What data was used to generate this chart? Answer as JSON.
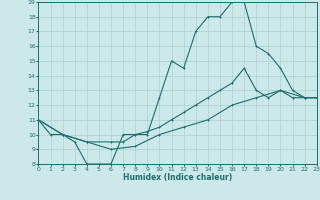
{
  "xlabel": "Humidex (Indice chaleur)",
  "xlim": [
    0,
    23
  ],
  "ylim": [
    8,
    19
  ],
  "xticks": [
    0,
    1,
    2,
    3,
    4,
    5,
    6,
    7,
    8,
    9,
    10,
    11,
    12,
    13,
    14,
    15,
    16,
    17,
    18,
    19,
    20,
    21,
    22,
    23
  ],
  "yticks": [
    8,
    9,
    10,
    11,
    12,
    13,
    14,
    15,
    16,
    17,
    18,
    19
  ],
  "bg_color": "#cce8e8",
  "line_color": "#1a7070",
  "grid_color": "#b0d4d4",
  "line1_x": [
    0,
    1,
    2,
    3,
    4,
    5,
    6,
    7,
    8,
    9,
    10,
    11,
    12,
    13,
    14,
    15,
    16,
    17,
    18,
    19,
    20,
    21,
    22,
    23
  ],
  "line1_y": [
    11,
    10,
    10,
    9.5,
    8,
    8,
    8,
    10,
    10,
    10,
    12.5,
    15,
    14.5,
    17,
    18,
    18,
    19,
    19,
    16,
    15.5,
    14.5,
    13,
    12.5,
    12.5
  ],
  "line2_x": [
    0,
    2,
    4,
    6,
    7,
    8,
    9,
    10,
    11,
    12,
    13,
    14,
    15,
    16,
    17,
    18,
    19,
    20,
    21,
    22,
    23
  ],
  "line2_y": [
    11,
    10,
    9.5,
    9.5,
    9.5,
    10,
    10.2,
    10.5,
    11,
    11.5,
    12,
    12.5,
    13,
    13.5,
    14.5,
    13,
    12.5,
    13,
    12.5,
    12.5,
    12.5
  ],
  "line3_x": [
    0,
    2,
    4,
    6,
    8,
    10,
    12,
    14,
    16,
    18,
    20,
    22,
    23
  ],
  "line3_y": [
    11,
    10,
    9.5,
    9.0,
    9.2,
    10,
    10.5,
    11,
    12,
    12.5,
    13,
    12.5,
    12.5
  ]
}
